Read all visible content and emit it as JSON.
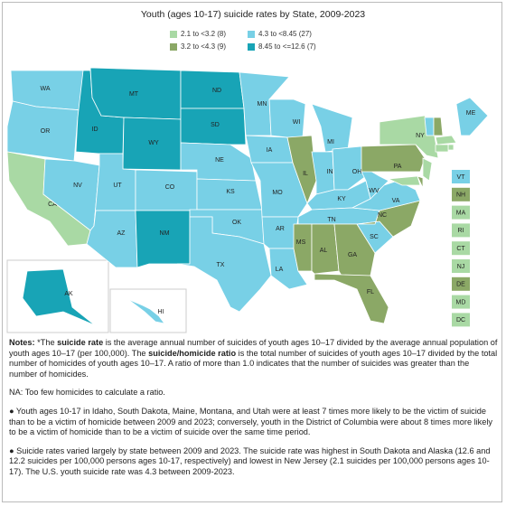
{
  "title": "Youth (ages 10-17) suicide rates by State, 2009-2023",
  "legend": [
    {
      "label": "2.1 to <3.2 (8)",
      "color": "#a9d9a4"
    },
    {
      "label": "3.2 to <4.3 (9)",
      "color": "#8ba866"
    },
    {
      "label": "4.3 to <8.45 (27)",
      "color": "#78d0e6"
    },
    {
      "label": "8.45 to <=12.6 (7)",
      "color": "#18a4b6"
    }
  ],
  "states": [
    {
      "abbr": "WA",
      "class": 2
    },
    {
      "abbr": "OR",
      "class": 2
    },
    {
      "abbr": "CA",
      "class": 0
    },
    {
      "abbr": "NV",
      "class": 2
    },
    {
      "abbr": "ID",
      "class": 3
    },
    {
      "abbr": "MT",
      "class": 3
    },
    {
      "abbr": "WY",
      "class": 3
    },
    {
      "abbr": "UT",
      "class": 2
    },
    {
      "abbr": "AZ",
      "class": 2
    },
    {
      "abbr": "CO",
      "class": 2
    },
    {
      "abbr": "NM",
      "class": 3
    },
    {
      "abbr": "ND",
      "class": 3
    },
    {
      "abbr": "SD",
      "class": 3
    },
    {
      "abbr": "NE",
      "class": 2
    },
    {
      "abbr": "KS",
      "class": 2
    },
    {
      "abbr": "OK",
      "class": 2
    },
    {
      "abbr": "TX",
      "class": 2
    },
    {
      "abbr": "MN",
      "class": 2
    },
    {
      "abbr": "IA",
      "class": 2
    },
    {
      "abbr": "MO",
      "class": 2
    },
    {
      "abbr": "AR",
      "class": 2
    },
    {
      "abbr": "LA",
      "class": 2
    },
    {
      "abbr": "WI",
      "class": 2
    },
    {
      "abbr": "IL",
      "class": 1
    },
    {
      "abbr": "MI",
      "class": 2
    },
    {
      "abbr": "IN",
      "class": 2
    },
    {
      "abbr": "OH",
      "class": 2
    },
    {
      "abbr": "KY",
      "class": 2
    },
    {
      "abbr": "TN",
      "class": 2
    },
    {
      "abbr": "MS",
      "class": 1
    },
    {
      "abbr": "AL",
      "class": 1
    },
    {
      "abbr": "GA",
      "class": 1
    },
    {
      "abbr": "FL",
      "class": 1
    },
    {
      "abbr": "SC",
      "class": 2
    },
    {
      "abbr": "NC",
      "class": 1
    },
    {
      "abbr": "VA",
      "class": 2
    },
    {
      "abbr": "WV",
      "class": 2
    },
    {
      "abbr": "PA",
      "class": 1
    },
    {
      "abbr": "NY",
      "class": 0
    },
    {
      "abbr": "ME",
      "class": 2
    },
    {
      "abbr": "AK",
      "class": 3
    },
    {
      "abbr": "HI",
      "class": 2
    },
    {
      "abbr": "VT",
      "class": 2
    },
    {
      "abbr": "NH",
      "class": 1
    },
    {
      "abbr": "MA",
      "class": 0
    },
    {
      "abbr": "RI",
      "class": 0
    },
    {
      "abbr": "CT",
      "class": 0
    },
    {
      "abbr": "NJ",
      "class": 0
    },
    {
      "abbr": "DE",
      "class": 1
    },
    {
      "abbr": "MD",
      "class": 0
    },
    {
      "abbr": "DC",
      "class": 0
    }
  ],
  "notes": [
    [
      {
        "text": "Notes: ",
        "bold": true
      },
      {
        "text": "*The ",
        "bold": false
      },
      {
        "text": "suicide rate",
        "bold": true
      },
      {
        "text": " is the average annual number of suicides of youth ages 10–17 divided by the average annual population of youth ages 10–17 (per 100,000). The ",
        "bold": false
      },
      {
        "text": "suicide/homicide ratio",
        "bold": true
      },
      {
        "text": " is the total number of suicides of youth ages 10–17 divided by the total number of homicides of youth ages 10–17. A ratio of more than 1.0 indicates that the number of suicides was greater than the number of homicides.",
        "bold": false
      }
    ],
    [
      {
        "text": "NA: Too few homicides to calculate a ratio.",
        "bold": false
      }
    ],
    [
      {
        "text": "● Youth ages 10-17 in Idaho, South Dakota, Maine, Montana, and Utah were at least 7 times more likely to be the victim of suicide than to be a victim of homicide between 2009 and 2023; conversely, youth in the District of Columbia were about 8 times more likely to be a victim of homicide than to be a victim of suicide over the same time period.",
        "bold": false
      }
    ],
    [
      {
        "text": "● Suicide rates varied largely by state between 2009 and 2023. The suicide rate was highest in South Dakota and Alaska (12.6 and 12.2 suicides per 100,000 persons ages 10-17, respectively) and lowest in New Jersey (2.1 suicides per 100,000 persons ages 10-17). The U.S. youth suicide rate was 4.3 between 2009-2023.",
        "bold": false
      }
    ]
  ]
}
